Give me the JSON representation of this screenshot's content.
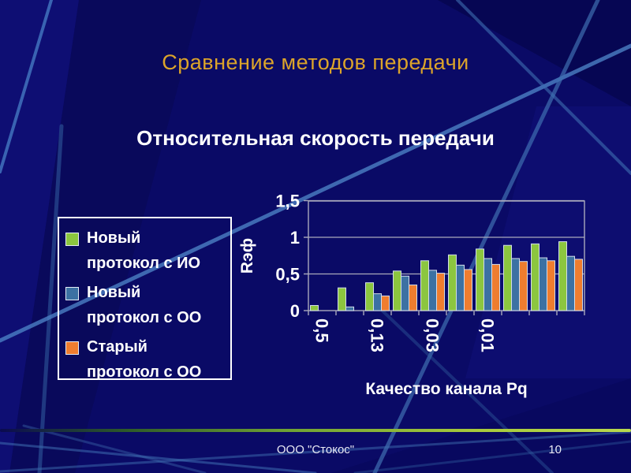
{
  "slide": {
    "title": "Сравнение методов передачи",
    "subtitle": "Относительная скорость передачи",
    "footer": "ООО \"Стокос\"",
    "page_number": "10"
  },
  "theme": {
    "background_color": "#0a0a66",
    "title_color": "#dca42a",
    "text_color": "#ffffff",
    "divider_accent_color": "#a6c93c",
    "grid_color": "#a9a9bc",
    "decor_line_color": "#4579c2"
  },
  "legend": {
    "items": [
      {
        "lines": [
          "Новый",
          "протокол с ИО"
        ],
        "color": "#8cc63f"
      },
      {
        "lines": [
          "Новый",
          "протокол с ОО"
        ],
        "color": "#3c71a3"
      },
      {
        "lines": [
          "Старый",
          "протокол с ОО"
        ],
        "color": "#ef7d2f"
      }
    ]
  },
  "chart_data": {
    "type": "bar",
    "title": "Относительная скорость передачи",
    "xlabel": "Качество канала Pq",
    "ylabel": "Rэф",
    "ylim": [
      0,
      1.5
    ],
    "ytick_values": [
      0,
      0.5,
      1,
      1.5
    ],
    "ytick_labels": [
      "0",
      "0,5",
      "1",
      "1,5"
    ],
    "categories": [
      "0,5",
      "",
      "0,13",
      "",
      "0,03",
      "",
      "0,01",
      "",
      "",
      ""
    ],
    "grid": true,
    "legend_position": "left",
    "series": [
      {
        "name": "Новый протокол с ИО",
        "color": "#8cc63f",
        "values": [
          0.07,
          0.31,
          0.38,
          0.54,
          0.68,
          0.76,
          0.84,
          0.89,
          0.91,
          0.94
        ]
      },
      {
        "name": "Новый протокол с ОО",
        "color": "#3c71a3",
        "values": [
          0,
          0.05,
          0.23,
          0.47,
          0.55,
          0.62,
          0.71,
          0.71,
          0.72,
          0.74
        ]
      },
      {
        "name": "Старый протокол с ОО",
        "color": "#ef7d2f",
        "values": [
          0,
          0,
          0.2,
          0.35,
          0.51,
          0.56,
          0.63,
          0.67,
          0.68,
          0.7
        ]
      }
    ]
  }
}
